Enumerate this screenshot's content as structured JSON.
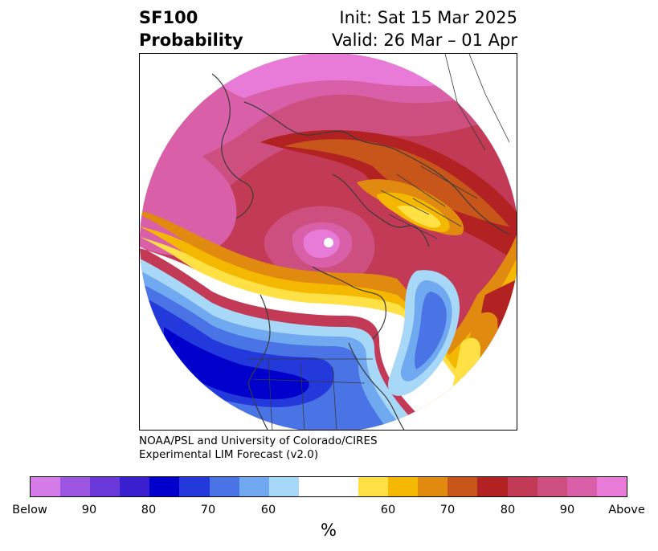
{
  "header": {
    "variable": "SF100",
    "product": "Probability",
    "init": "Init: Sat 15 Mar 2025",
    "valid": "Valid: 26 Mar – 01 Apr"
  },
  "credit": {
    "line1": "NOAA/PSL and University of Colorado/CIRES",
    "line2": "Experimental LIM Forecast (v2.0)"
  },
  "colorbar": {
    "unit": "%",
    "ticks": [
      "Below",
      "90",
      "80",
      "70",
      "60",
      "60",
      "70",
      "80",
      "90",
      "Above"
    ],
    "below_colors": [
      "#d57ce8",
      "#9b55e0",
      "#6a37d8",
      "#3a1fd0",
      "#0000cd",
      "#2339dc",
      "#4a74e6",
      "#71a9f0",
      "#a8d8f8"
    ],
    "neutral_color": "#ffffff",
    "above_colors": [
      "#ffe045",
      "#f5b800",
      "#e08a10",
      "#c8561a",
      "#b22222",
      "#c23a55",
      "#cc4f80",
      "#d960a8",
      "#e87ad8"
    ]
  },
  "map": {
    "projection": "north-polar-stereographic",
    "center_marker_color": "#ffffff",
    "boundary_color": "#3a3a3a"
  }
}
